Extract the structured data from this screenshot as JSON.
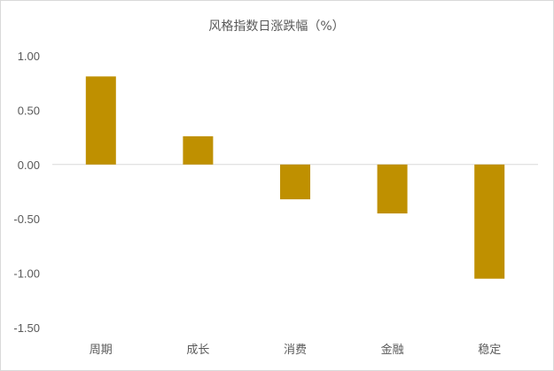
{
  "chart_data": {
    "type": "bar",
    "title": "风格指数日涨跌幅（%）",
    "xlabel": "",
    "ylabel": "",
    "categories": [
      "周期",
      "成长",
      "消费",
      "金融",
      "稳定"
    ],
    "values": [
      0.81,
      0.26,
      -0.32,
      -0.45,
      -1.05
    ],
    "ylim": [
      -1.5,
      1.0
    ],
    "yticks": [
      "1.00",
      "0.50",
      "0.00",
      "-0.50",
      "-1.00",
      "-1.50"
    ],
    "ytick_values": [
      1.0,
      0.5,
      0.0,
      -0.5,
      -1.0,
      -1.5
    ],
    "grid": false,
    "legend": "none",
    "bar_color": "#BF9000"
  }
}
